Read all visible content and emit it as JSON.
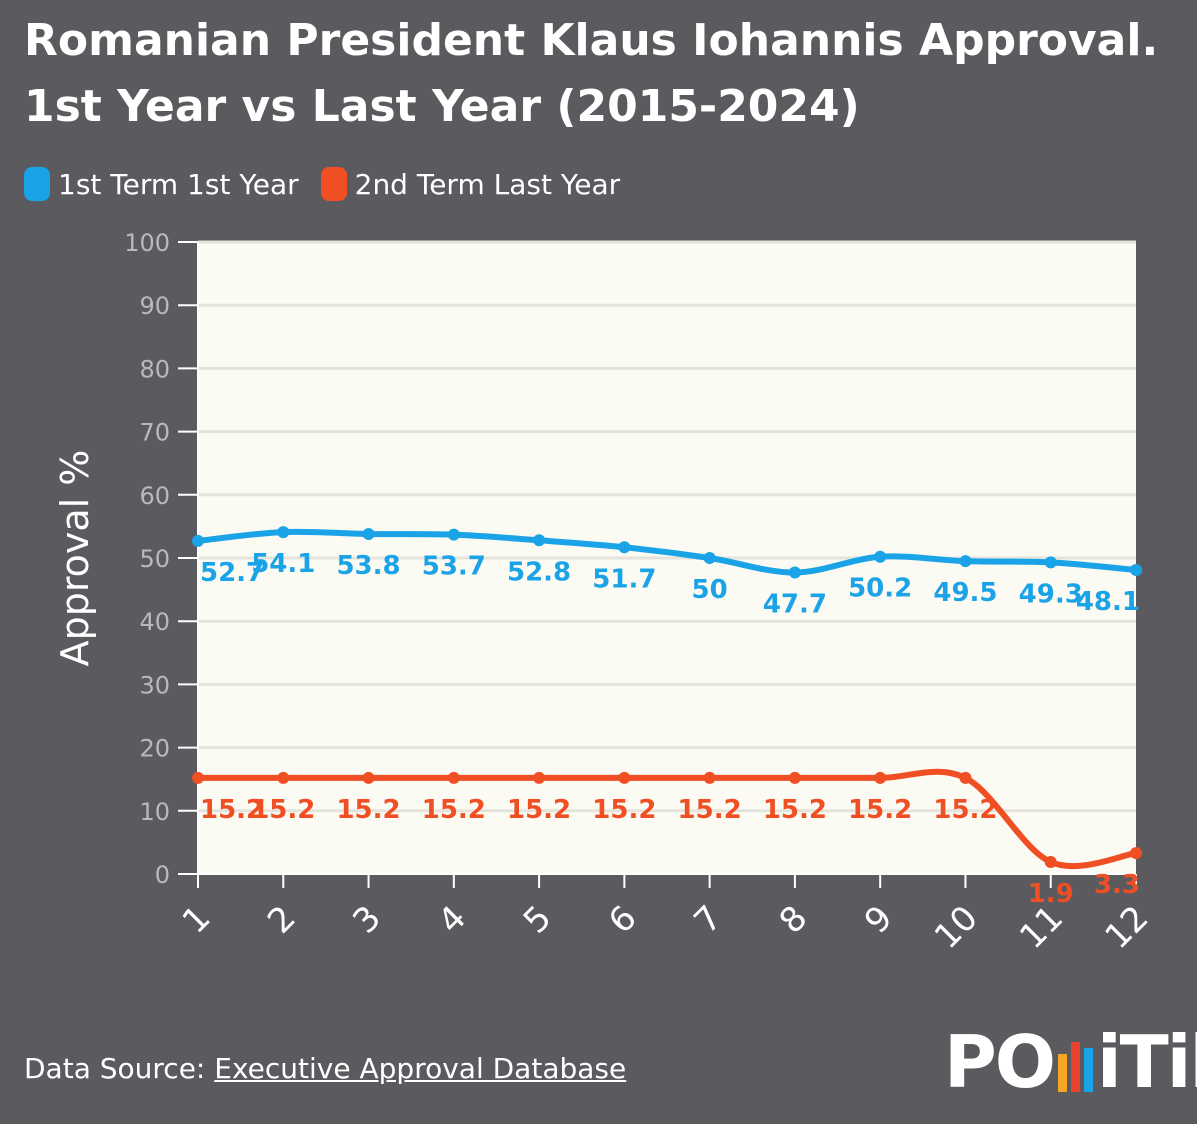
{
  "header": {
    "title": "Romanian President Klaus Iohannis Approval. 1st Year vs Last Year (2015-2024)"
  },
  "legend": [
    {
      "label": "1st Term 1st Year",
      "color": "#1ba3e8"
    },
    {
      "label": "2nd Term Last Year",
      "color": "#f04e23"
    }
  ],
  "chart_data": {
    "type": "line",
    "title": "Romanian President Klaus Iohannis Approval. 1st Year vs Last Year (2015-2024)",
    "xlabel": "",
    "ylabel": "Approval %",
    "x": [
      "1",
      "2",
      "3",
      "4",
      "5",
      "6",
      "7",
      "8",
      "9",
      "10",
      "11",
      "12"
    ],
    "ylim": [
      0,
      100
    ],
    "yticks": [
      "0",
      "10",
      "20",
      "30",
      "40",
      "50",
      "60",
      "70",
      "80",
      "90",
      "100"
    ],
    "grid": true,
    "legend_position": "top-left",
    "series": [
      {
        "name": "1st Term 1st Year",
        "color": "#1ba3e8",
        "values": [
          52.7,
          54.1,
          53.8,
          53.7,
          52.8,
          51.7,
          50,
          47.7,
          50.2,
          49.5,
          49.3,
          48.1
        ],
        "labels": [
          "52.7",
          "54.1",
          "53.8",
          "53.7",
          "52.8",
          "51.7",
          "50",
          "47.7",
          "50.2",
          "49.5",
          "49.3",
          "48.1"
        ]
      },
      {
        "name": "2nd Term Last Year",
        "color": "#f04e23",
        "values": [
          15.2,
          15.2,
          15.2,
          15.2,
          15.2,
          15.2,
          15.2,
          15.2,
          15.2,
          15.2,
          1.9,
          3.3
        ],
        "labels": [
          "15.2",
          "15.2",
          "15.2",
          "15.2",
          "15.2",
          "15.2",
          "15.2",
          "15.2",
          "15.2",
          "15.2",
          "1.9",
          "3.3"
        ]
      }
    ]
  },
  "footer": {
    "source_prefix": "Data Source: ",
    "source_link": "Executive Approval Database",
    "logo_left": "PO",
    "logo_right": "iTik",
    "logo_bar_colors": [
      "#f5a623",
      "#e8452c",
      "#1ba3e8"
    ]
  }
}
